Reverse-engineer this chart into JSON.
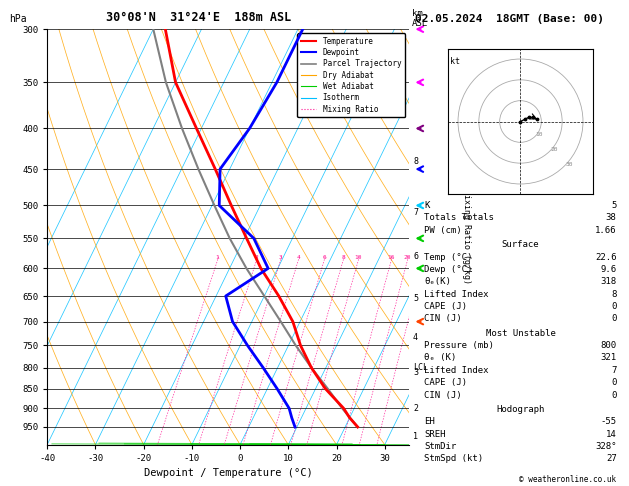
{
  "title_left": "30°08'N  31°24'E  188m ASL",
  "title_right": "02.05.2024  18GMT (Base: 00)",
  "xlabel": "Dewpoint / Temperature (°C)",
  "ylabel_left": "hPa",
  "pressure_levels": [
    300,
    350,
    400,
    450,
    500,
    550,
    600,
    650,
    700,
    750,
    800,
    850,
    900,
    950
  ],
  "temp_ticks": [
    -40,
    -30,
    -20,
    -10,
    0,
    10,
    20,
    30
  ],
  "isotherm_color": "#00bfff",
  "dry_adiabat_color": "#ffa500",
  "wet_adiabat_color": "#00cc00",
  "mixing_ratio_color": "#ff1493",
  "temp_profile_color": "#ff0000",
  "dewp_profile_color": "#0000ff",
  "parcel_color": "#808080",
  "km_ticks": [
    1,
    2,
    3,
    4,
    5,
    6,
    7,
    8
  ],
  "km_pressures": [
    977,
    900,
    812,
    732,
    655,
    580,
    510,
    440
  ],
  "lcl_pressure": 800,
  "temp_data": {
    "pressure": [
      950,
      925,
      900,
      850,
      800,
      750,
      700,
      650,
      600,
      550,
      500,
      450,
      400,
      350,
      300
    ],
    "temp": [
      22.6,
      20.0,
      17.8,
      12.0,
      7.0,
      2.5,
      -1.5,
      -7.0,
      -13.5,
      -19.5,
      -26.0,
      -33.0,
      -41.0,
      -50.0,
      -57.5
    ]
  },
  "dewp_data": {
    "pressure": [
      950,
      925,
      900,
      850,
      800,
      750,
      700,
      650,
      600,
      550,
      500,
      450,
      400,
      350,
      300
    ],
    "dewp": [
      9.6,
      8.0,
      6.5,
      2.0,
      -3.0,
      -8.5,
      -14.0,
      -18.0,
      -12.0,
      -18.0,
      -28.5,
      -32.0,
      -30.0,
      -29.0,
      -29.0
    ]
  },
  "parcel_data": {
    "pressure": [
      950,
      900,
      850,
      800,
      750,
      700,
      650,
      600,
      550,
      500,
      450,
      400,
      350,
      300
    ],
    "temp": [
      22.6,
      17.5,
      12.5,
      7.0,
      1.5,
      -4.0,
      -10.0,
      -16.5,
      -23.0,
      -29.5,
      -36.5,
      -44.0,
      -52.0,
      -60.0
    ]
  },
  "stats": {
    "K": 5,
    "Totals_Totals": 38,
    "PW_cm": 1.66,
    "Surface_Temp": 22.6,
    "Surface_Dewp": 9.6,
    "Surface_ThetaE": 318,
    "Surface_LI": 8,
    "Surface_CAPE": 0,
    "Surface_CIN": 0,
    "MU_Pressure": 800,
    "MU_ThetaE": 321,
    "MU_LI": 7,
    "MU_CAPE": 0,
    "MU_CIN": 0,
    "EH": -55,
    "SREH": 14,
    "StmDir": 328,
    "StmSpd": 27
  },
  "hodograph_u": [
    0,
    2,
    4,
    6,
    8
  ],
  "hodograph_v": [
    0,
    1,
    2,
    2,
    1
  ],
  "wind_barb_pressures": [
    300,
    350,
    400,
    450,
    500,
    550,
    600,
    700
  ],
  "wind_barb_colors": [
    "#ff00ff",
    "#ff00ff",
    "#800080",
    "#0000ff",
    "#00ccff",
    "#00cc00",
    "#00cc00",
    "#ff4400"
  ]
}
